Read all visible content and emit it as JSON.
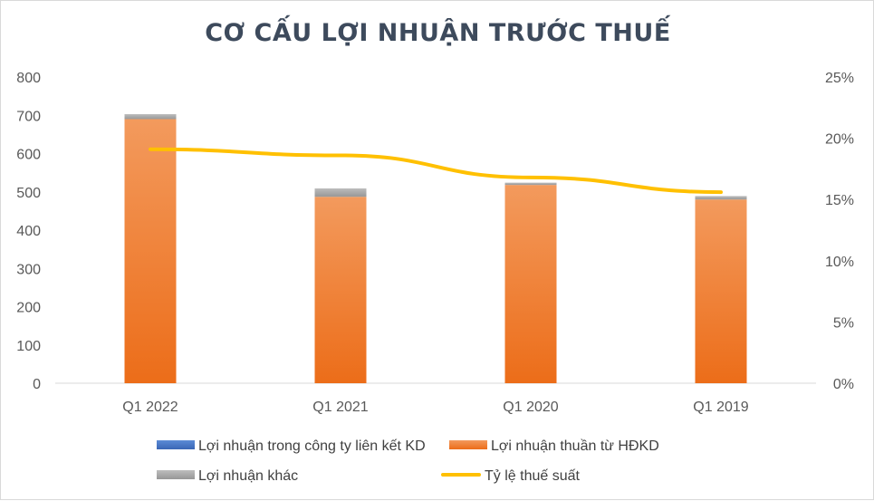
{
  "chart_data": {
    "type": "bar",
    "title": "CƠ CẤU LỢI NHUẬN TRƯỚC THUẾ",
    "stacked": true,
    "categories": [
      "Q1 2022",
      "Q1 2021",
      "Q1 2020",
      "Q1 2019"
    ],
    "series": [
      {
        "name": "Lợi nhuận trong công ty liên kết KD",
        "type": "bar",
        "axis": "left",
        "color": "#4472c4",
        "values": [
          0,
          0,
          0,
          0
        ]
      },
      {
        "name": "Lợi nhuận thuần từ HĐKD",
        "type": "bar",
        "axis": "left",
        "color": "#f07d2c",
        "values": [
          690,
          487,
          518,
          480
        ]
      },
      {
        "name": "Lợi nhuận khác",
        "type": "bar",
        "axis": "left",
        "color": "#a5a5a5",
        "values": [
          13,
          22,
          6,
          9
        ]
      },
      {
        "name": "Tỷ lệ thuế suất",
        "type": "line",
        "axis": "right",
        "color": "#ffc000",
        "values": [
          0.191,
          0.186,
          0.168,
          0.156
        ]
      }
    ],
    "y_left": {
      "min": 0,
      "max": 800,
      "step": 100,
      "ticks": [
        "0",
        "100",
        "200",
        "300",
        "400",
        "500",
        "600",
        "700",
        "800"
      ]
    },
    "y_right": {
      "min": 0,
      "max": 0.25,
      "step": 0.05,
      "ticks": [
        "0%",
        "5%",
        "10%",
        "15%",
        "20%",
        "25%"
      ]
    },
    "grid": false,
    "legend_position": "bottom"
  }
}
